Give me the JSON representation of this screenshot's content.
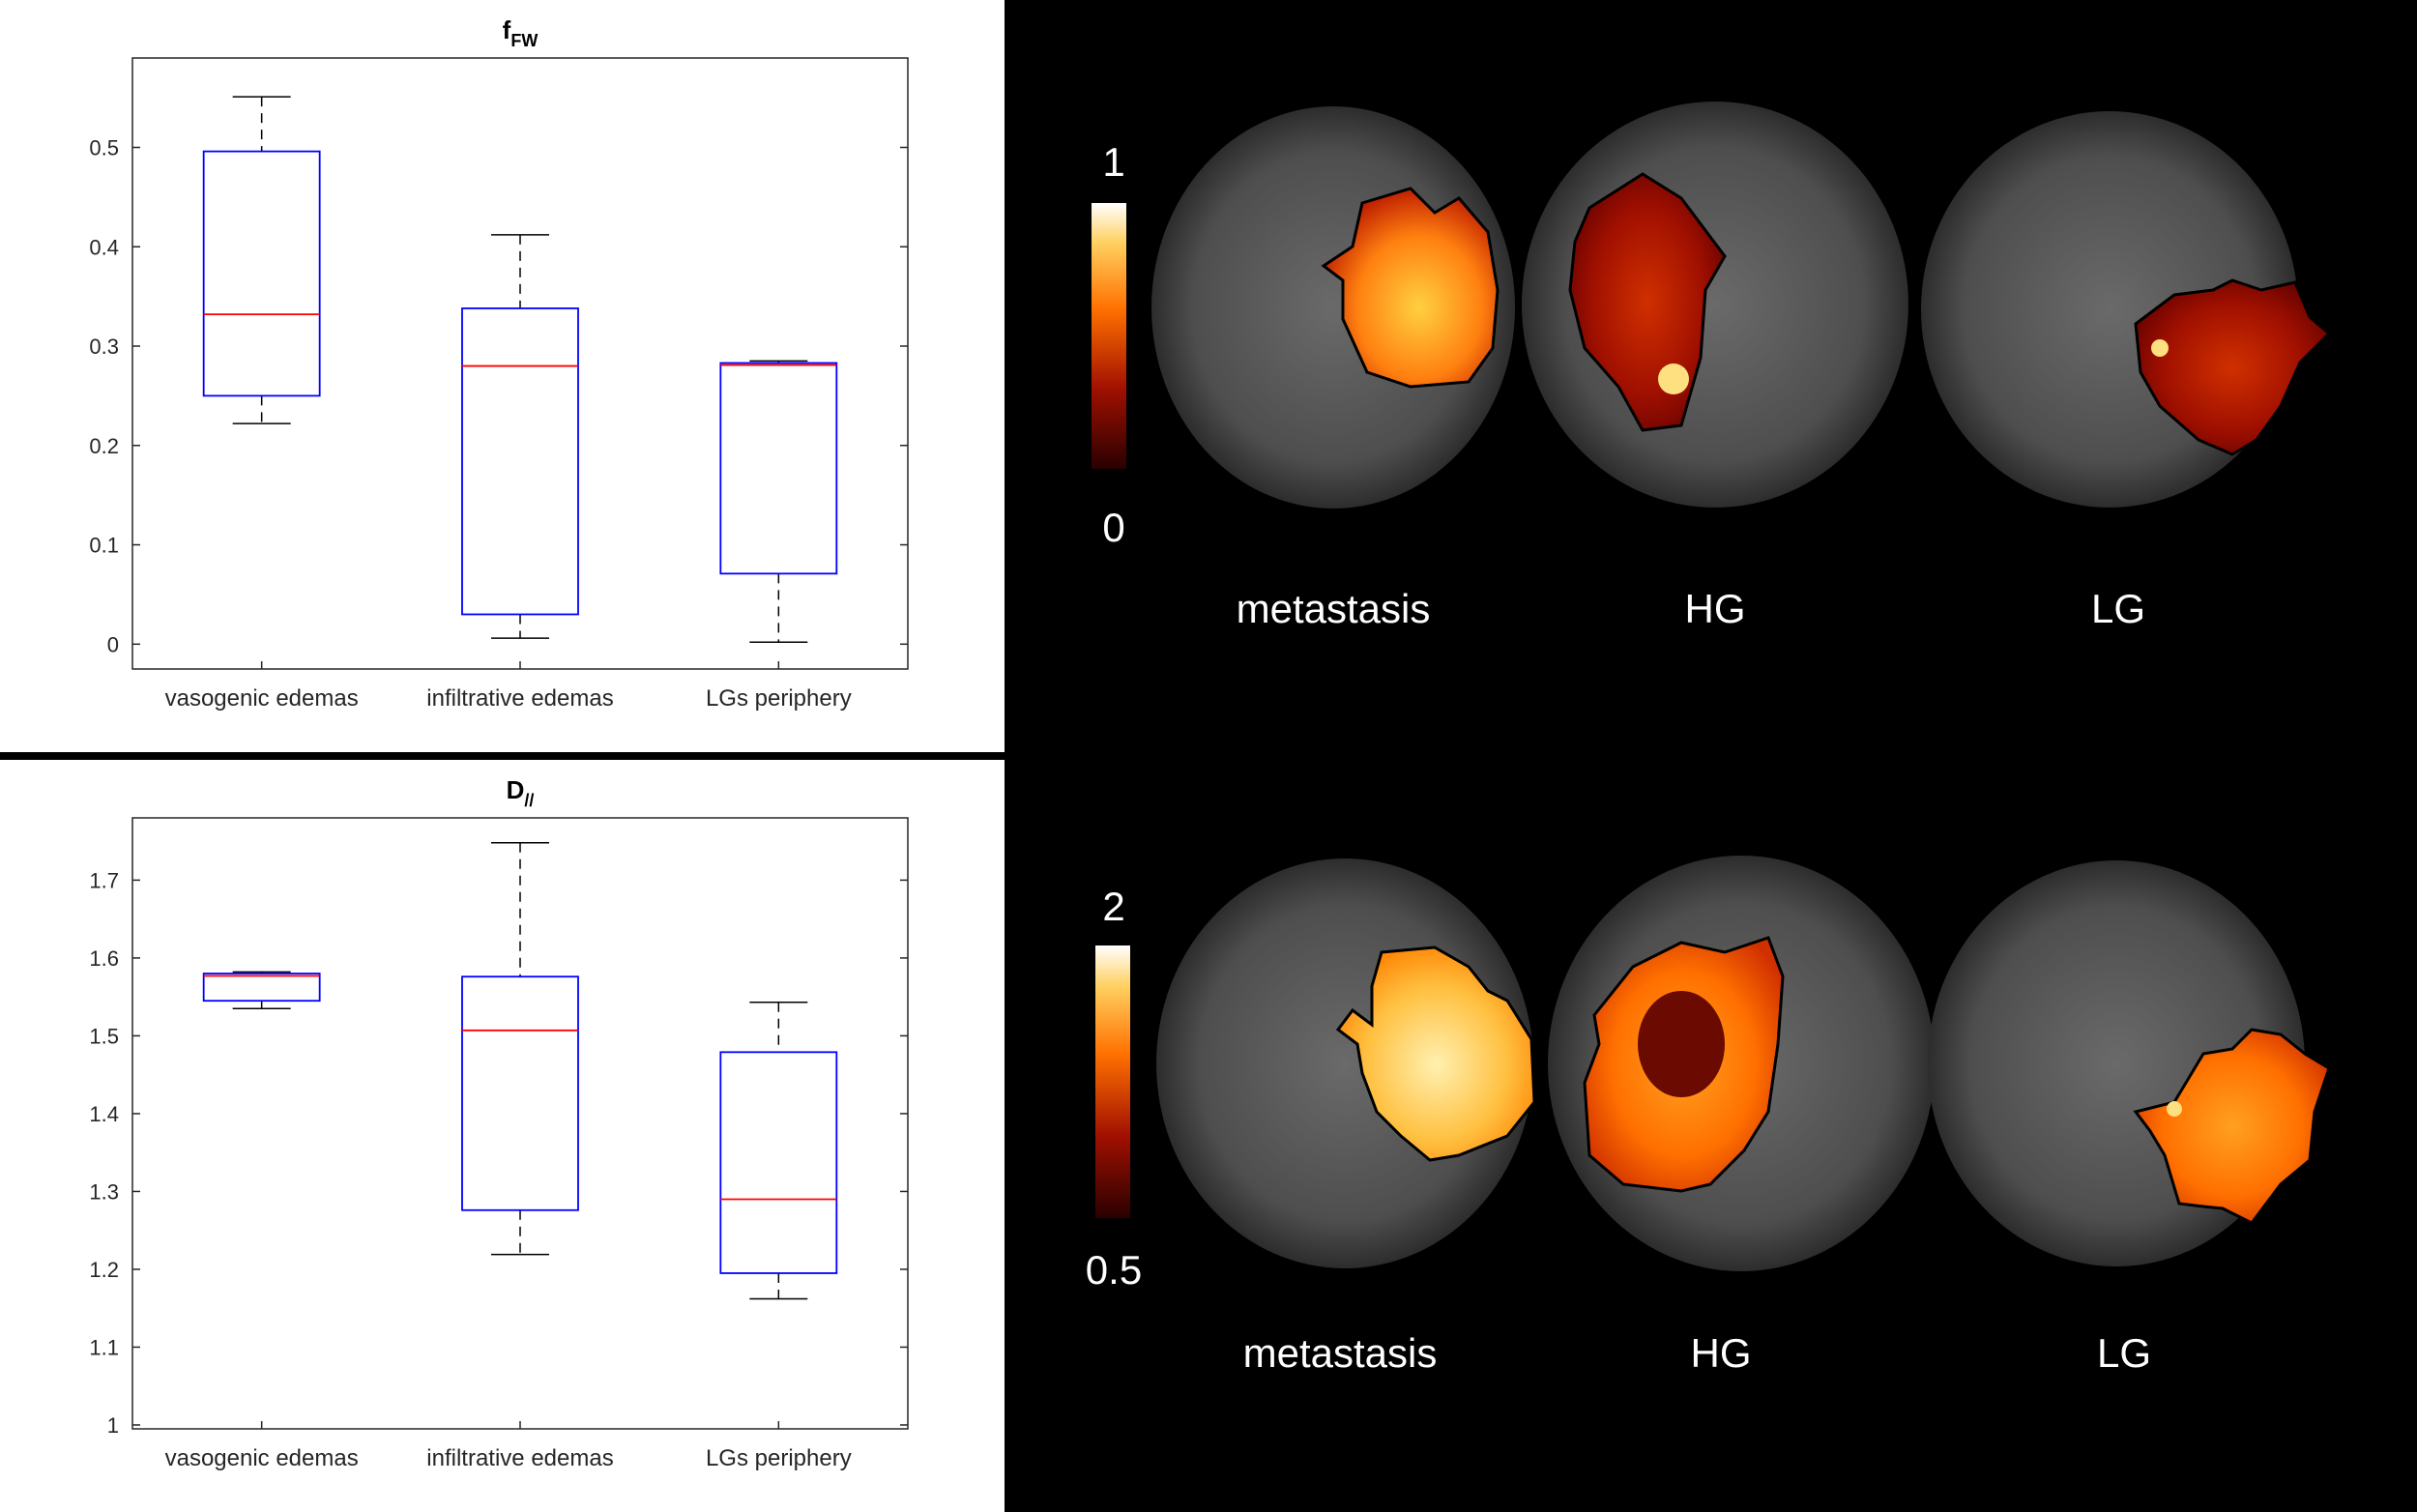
{
  "charts": [
    {
      "title_main": "f",
      "title_sub": "FW",
      "chart_data": {
        "type": "box",
        "categories": [
          "vasogenic edemas",
          "infiltrative edemas",
          "LGs periphery"
        ],
        "ylim": [
          -0.025,
          0.59
        ],
        "yticks": [
          "0",
          "0.1",
          "0.2",
          "0.3",
          "0.4",
          "0.5"
        ],
        "ytick_values": [
          0,
          0.1,
          0.2,
          0.3,
          0.4,
          0.5
        ],
        "boxes": [
          {
            "min": 0.222,
            "q1": 0.25,
            "median": 0.332,
            "q3": 0.496,
            "max": 0.551
          },
          {
            "min": 0.006,
            "q1": 0.03,
            "median": 0.28,
            "q3": 0.338,
            "max": 0.412
          },
          {
            "min": 0.002,
            "q1": 0.071,
            "median": 0.281,
            "q3": 0.283,
            "max": 0.285
          }
        ],
        "box_color": "#0000ff",
        "median_color": "#ff0000",
        "whisker_color": "#000000"
      }
    },
    {
      "title_main": "D",
      "title_sub": "//",
      "chart_data": {
        "type": "box",
        "categories": [
          "vasogenic edemas",
          "infiltrative edemas",
          "LGs periphery"
        ],
        "ylim": [
          0.995,
          1.78
        ],
        "yticks": [
          "1",
          "1.1",
          "1.2",
          "1.3",
          "1.4",
          "1.5",
          "1.6",
          "1.7"
        ],
        "ytick_values": [
          1,
          1.1,
          1.2,
          1.3,
          1.4,
          1.5,
          1.6,
          1.7
        ],
        "boxes": [
          {
            "min": 1.535,
            "q1": 1.545,
            "median": 1.577,
            "q3": 1.58,
            "max": 1.582
          },
          {
            "min": 1.219,
            "q1": 1.276,
            "median": 1.507,
            "q3": 1.576,
            "max": 1.748
          },
          {
            "min": 1.162,
            "q1": 1.195,
            "median": 1.29,
            "q3": 1.479,
            "max": 1.543
          }
        ],
        "box_color": "#0000ff",
        "median_color": "#ff0000",
        "whisker_color": "#000000"
      }
    }
  ],
  "maps": {
    "top": {
      "colorbar_max": "1",
      "colorbar_min": "0",
      "labels": [
        "metastasis",
        "HG",
        "LG"
      ]
    },
    "bottom": {
      "colorbar_max": "2",
      "colorbar_min": "0.5",
      "labels": [
        "metastasis",
        "HG",
        "LG"
      ]
    }
  }
}
